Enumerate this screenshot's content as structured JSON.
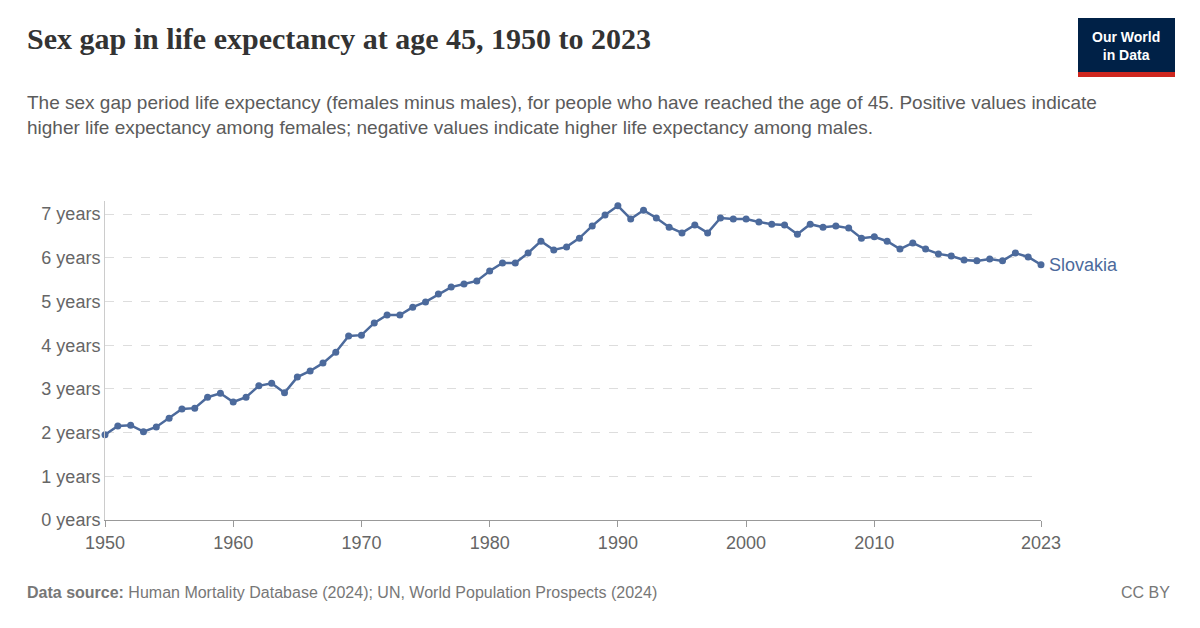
{
  "chart_data": {
    "type": "line",
    "title": "Sex gap in life expectancy at age 45, 1950 to 2023",
    "subtitle": "The sex gap period life expectancy (females minus males), for people who have reached the age of 45. Positive values indicate higher life expectancy among females; negative values indicate higher life expectancy among males.",
    "x": [
      1950,
      1951,
      1952,
      1953,
      1954,
      1955,
      1956,
      1957,
      1958,
      1959,
      1960,
      1961,
      1962,
      1963,
      1964,
      1965,
      1966,
      1967,
      1968,
      1969,
      1970,
      1971,
      1972,
      1973,
      1974,
      1975,
      1976,
      1977,
      1978,
      1979,
      1980,
      1981,
      1982,
      1983,
      1984,
      1985,
      1986,
      1987,
      1988,
      1989,
      1990,
      1991,
      1992,
      1993,
      1994,
      1995,
      1996,
      1997,
      1998,
      1999,
      2000,
      2001,
      2002,
      2003,
      2004,
      2005,
      2006,
      2007,
      2008,
      2009,
      2010,
      2011,
      2012,
      2013,
      2014,
      2015,
      2016,
      2017,
      2018,
      2019,
      2020,
      2021,
      2022,
      2023
    ],
    "series": [
      {
        "name": "Slovakia",
        "color": "#4c6a9c",
        "marker": "circle",
        "line_style": "solid",
        "values": [
          1.95,
          2.15,
          2.17,
          2.02,
          2.13,
          2.33,
          2.54,
          2.56,
          2.81,
          2.9,
          2.7,
          2.81,
          3.07,
          3.13,
          2.91,
          3.27,
          3.41,
          3.59,
          3.84,
          4.21,
          4.23,
          4.51,
          4.69,
          4.69,
          4.87,
          4.99,
          5.17,
          5.33,
          5.4,
          5.47,
          5.7,
          5.88,
          5.88,
          6.11,
          6.38,
          6.18,
          6.25,
          6.45,
          6.73,
          6.98,
          7.19,
          6.89,
          7.09,
          6.91,
          6.7,
          6.57,
          6.75,
          6.57,
          6.91,
          6.89,
          6.89,
          6.82,
          6.77,
          6.75,
          6.54,
          6.77,
          6.7,
          6.73,
          6.68,
          6.45,
          6.48,
          6.38,
          6.2,
          6.34,
          6.2,
          6.09,
          6.04,
          5.95,
          5.93,
          5.97,
          5.93,
          6.11,
          6.02,
          5.84
        ]
      }
    ],
    "xlim": [
      1950,
      2023
    ],
    "xticks": [
      1950,
      1960,
      1970,
      1980,
      1990,
      2000,
      2010,
      2023
    ],
    "ylim": [
      0,
      7.3
    ],
    "yticks": [
      {
        "value": 0,
        "label": "0 years"
      },
      {
        "value": 1,
        "label": "1 years"
      },
      {
        "value": 2,
        "label": "2 years"
      },
      {
        "value": 3,
        "label": "3 years"
      },
      {
        "value": 4,
        "label": "4 years"
      },
      {
        "value": 5,
        "label": "5 years"
      },
      {
        "value": 6,
        "label": "6 years"
      },
      {
        "value": 7,
        "label": "7 years"
      }
    ],
    "grid": true,
    "source_label": "Data source:",
    "source": "Human Mortality Database (2024); UN, World Population Prospects (2024)",
    "license": "CC BY",
    "logo": "Our World in Data"
  }
}
